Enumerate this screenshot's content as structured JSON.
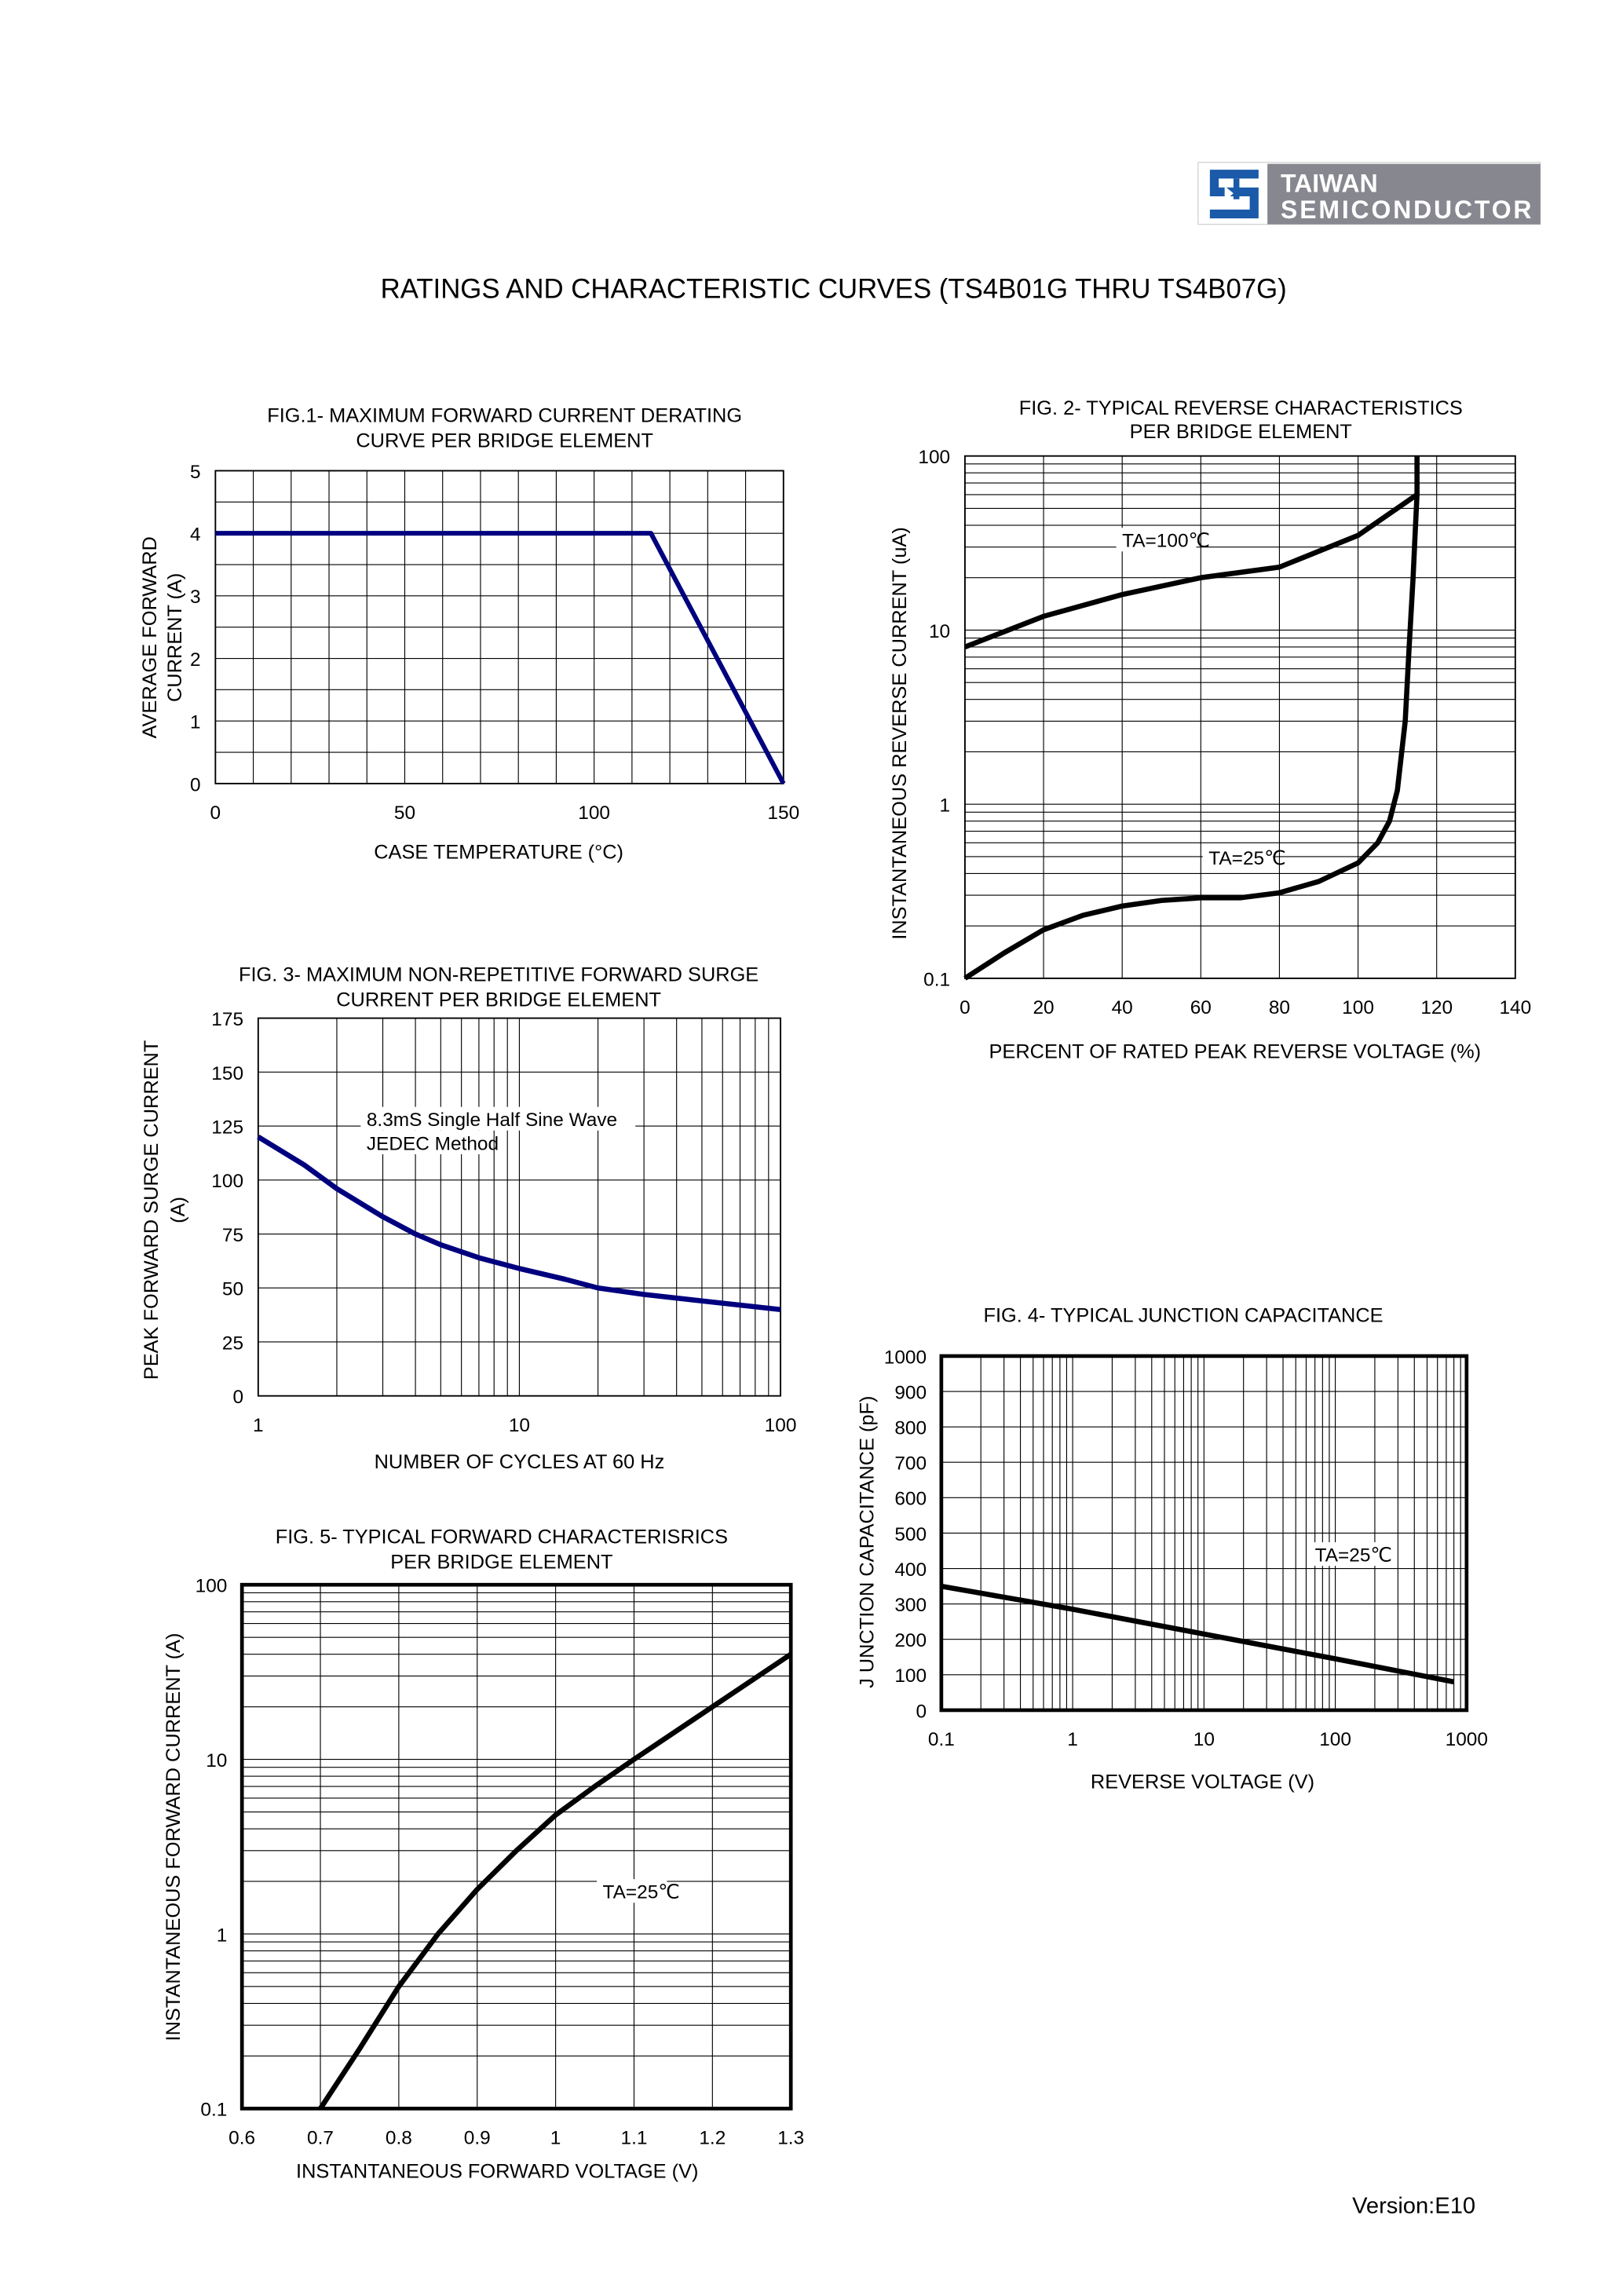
{
  "header": {
    "logo_text_line1": "TAIWAN",
    "logo_text_line2": "SEMICONDUCTOR",
    "logo_colors": {
      "mark": "#1a5aa8",
      "panel": "#878790"
    },
    "title": "RATINGS AND CHARACTERISTIC CURVES (TS4B01G THRU TS4B07G)"
  },
  "footer": {
    "version": "Version:E10"
  },
  "chart_data": [
    {
      "id": "fig1",
      "type": "line",
      "title": [
        "FIG.1- MAXIMUM FORWARD CURRENT DERATING",
        "CURVE PER BRIDGE ELEMENT"
      ],
      "xlabel": "CASE TEMPERATURE (°C)",
      "ylabel": [
        "AVERAGE FORWARD",
        "CURRENT (A)"
      ],
      "xscale": "linear",
      "yscale": "linear",
      "xlim": [
        0,
        150
      ],
      "ylim": [
        0,
        5
      ],
      "xticks": [
        0,
        50,
        100,
        150
      ],
      "xtick_labels": [
        "0",
        "50",
        "100",
        "150"
      ],
      "yticks": [
        0,
        1,
        2,
        3,
        4,
        5
      ],
      "ytick_labels": [
        "0",
        "1",
        "2",
        "3",
        "4",
        "5"
      ],
      "grid": true,
      "series": [
        {
          "color": "#00007f",
          "x": [
            0,
            115,
            150
          ],
          "y": [
            4,
            4,
            0
          ]
        }
      ],
      "annotations": []
    },
    {
      "id": "fig2",
      "type": "line",
      "title": [
        "FIG. 2- TYPICAL REVERSE CHARACTERISTICS",
        "PER BRIDGE ELEMENT"
      ],
      "xlabel": "PERCENT OF RATED PEAK REVERSE VOLTAGE (%)",
      "ylabel": [
        "INSTANTANEOUS REVERSE CURRENT  (uA)"
      ],
      "xscale": "linear",
      "yscale": "log",
      "xlim": [
        0,
        140
      ],
      "ylim": [
        0.1,
        100
      ],
      "xticks": [
        0,
        20,
        40,
        60,
        80,
        100,
        120,
        140
      ],
      "xtick_labels": [
        "0",
        "20",
        "40",
        "60",
        "80",
        "100",
        "120",
        "140"
      ],
      "yticks": [
        0.1,
        1,
        10,
        100
      ],
      "ytick_labels": [
        "0.1",
        "1",
        "10",
        "100"
      ],
      "grid": true,
      "series": [
        {
          "name": "TA=100℃",
          "color": "#000000",
          "x": [
            0,
            20,
            40,
            60,
            80,
            100,
            115
          ],
          "y": [
            8,
            12,
            16,
            20,
            23,
            35,
            60
          ]
        },
        {
          "name": "TA=25℃",
          "color": "#000000",
          "x": [
            0,
            10,
            20,
            30,
            40,
            50,
            60,
            70,
            80,
            90,
            100,
            105,
            108,
            110,
            112,
            113,
            114,
            114.5,
            115,
            115
          ],
          "y": [
            0.1,
            0.14,
            0.19,
            0.23,
            0.26,
            0.28,
            0.29,
            0.29,
            0.31,
            0.36,
            0.46,
            0.6,
            0.8,
            1.2,
            3,
            8,
            20,
            35,
            60,
            100
          ]
        }
      ],
      "annotations": [
        {
          "text": "TA=100℃",
          "x": 40,
          "y": 30
        },
        {
          "text": "TA=25℃",
          "x": 62,
          "y": 0.45
        }
      ]
    },
    {
      "id": "fig3",
      "type": "line",
      "title": [
        "FIG. 3- MAXIMUM NON-REPETITIVE FORWARD SURGE",
        "CURRENT PER BRIDGE ELEMENT"
      ],
      "xlabel": "NUMBER OF CYCLES AT 60 Hz",
      "ylabel": [
        "PEAK FORWARD SURGE CURRENT",
        "(A)"
      ],
      "xscale": "log",
      "yscale": "linear",
      "xlim": [
        1,
        100
      ],
      "ylim": [
        0,
        175
      ],
      "xticks": [
        1,
        10,
        100
      ],
      "xtick_labels": [
        "1",
        "10",
        "100"
      ],
      "yticks": [
        0,
        25,
        50,
        75,
        100,
        125,
        150,
        175
      ],
      "ytick_labels": [
        "0",
        "25",
        "50",
        "75",
        "100",
        "125",
        "150",
        "175"
      ],
      "grid": true,
      "series": [
        {
          "color": "#00007f",
          "x": [
            1,
            1.5,
            2,
            3,
            4,
            5,
            7,
            10,
            15,
            20,
            30,
            50,
            100
          ],
          "y": [
            120,
            107,
            96,
            83,
            75,
            70,
            64,
            59,
            54,
            50,
            47,
            44,
            40
          ]
        }
      ],
      "annotations": [
        {
          "text": "8.3mS Single Half Sine Wave",
          "x": 2.6,
          "y": 125
        },
        {
          "text": "JEDEC Method",
          "x": 2.6,
          "y": 114
        }
      ]
    },
    {
      "id": "fig4",
      "type": "line",
      "title": [
        "FIG. 4- TYPICAL JUNCTION CAPACITANCE"
      ],
      "xlabel": "REVERSE VOLTAGE (V)",
      "ylabel": [
        "J UNCTION CAPACITANCE (pF)"
      ],
      "xscale": "log",
      "yscale": "linear",
      "xlim": [
        0.1,
        1000
      ],
      "ylim": [
        0,
        1000
      ],
      "xticks": [
        0.1,
        1,
        10,
        100,
        1000
      ],
      "xtick_labels": [
        "0.1",
        "1",
        "10",
        "100",
        "1000"
      ],
      "yticks": [
        0,
        100,
        200,
        300,
        400,
        500,
        600,
        700,
        800,
        900,
        1000
      ],
      "ytick_labels": [
        "0",
        "100",
        "200",
        "300",
        "400",
        "500",
        "600",
        "700",
        "800",
        "900",
        "1000"
      ],
      "grid": true,
      "series": [
        {
          "color": "#000000",
          "x": [
            0.1,
            1,
            10,
            100,
            800
          ],
          "y": [
            350,
            285,
            215,
            145,
            80
          ]
        }
      ],
      "annotations": [
        {
          "text": "TA=25℃",
          "x": 70,
          "y": 420
        }
      ]
    },
    {
      "id": "fig5",
      "type": "line",
      "title": [
        "FIG. 5- TYPICAL FORWARD CHARACTERISRICS",
        "PER BRIDGE ELEMENT"
      ],
      "xlabel": "INSTANTANEOUS FORWARD VOLTAGE (V)",
      "ylabel": [
        "INSTANTANEOUS FORWARD CURRENT (A)"
      ],
      "xscale": "linear",
      "yscale": "log",
      "xlim": [
        0.6,
        1.3
      ],
      "ylim": [
        0.1,
        100
      ],
      "xticks": [
        0.6,
        0.7,
        0.8,
        0.9,
        1.0,
        1.1,
        1.2,
        1.3
      ],
      "xtick_labels": [
        "0.6",
        "0.7",
        "0.8",
        "0.9",
        "1",
        "1.1",
        "1.2",
        "1.3"
      ],
      "yticks": [
        0.1,
        1,
        10,
        100
      ],
      "ytick_labels": [
        "0.1",
        "1",
        "10",
        "100"
      ],
      "grid": true,
      "series": [
        {
          "color": "#000000",
          "x": [
            0.7,
            0.75,
            0.8,
            0.85,
            0.9,
            0.95,
            1.0,
            1.05,
            1.1,
            1.2,
            1.3
          ],
          "y": [
            0.1,
            0.22,
            0.5,
            1.0,
            1.8,
            3.0,
            4.8,
            7,
            10,
            20,
            40
          ]
        }
      ],
      "annotations": [
        {
          "text": "TA=25℃",
          "x": 1.06,
          "y": 1.6
        }
      ]
    }
  ]
}
